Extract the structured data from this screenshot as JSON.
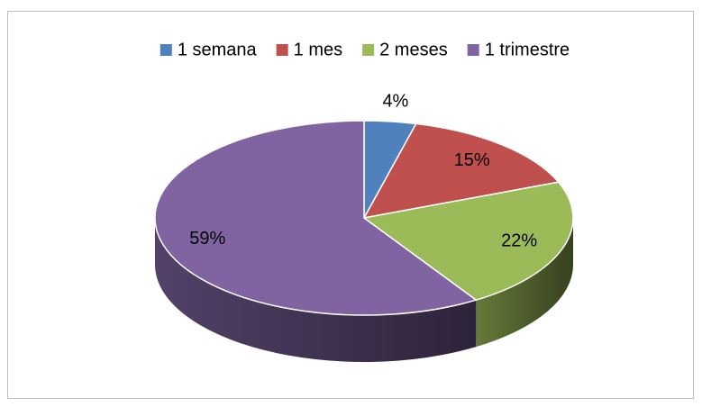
{
  "chart_data": {
    "type": "pie",
    "categories": [
      "1 semana",
      "1 mes",
      "2 meses",
      "1 trimestre"
    ],
    "values": [
      4,
      15,
      22,
      59
    ],
    "value_labels": [
      "4%",
      "15%",
      "22%",
      "59%"
    ],
    "colors": [
      "#4f81bd",
      "#c0504d",
      "#9bbb59",
      "#8064a2"
    ],
    "legend": "top"
  }
}
